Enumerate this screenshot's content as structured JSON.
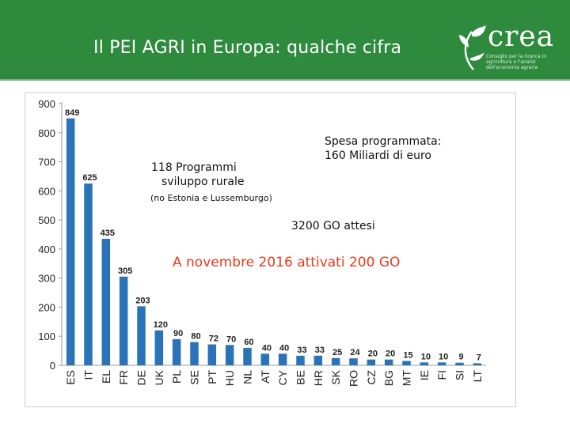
{
  "header": {
    "title": "Il PEI AGRI in Europa: qualche cifra",
    "logo_text": "crea",
    "logo_subtitle": "Consiglio per la ricerca in agricoltura e l'analisi dell'economia agraria"
  },
  "colors": {
    "header_bg": "#2e8b3e",
    "bar": "#2b73b8",
    "highlight": "#e83a1c"
  },
  "annotations": {
    "programs_line1": "118 Programmi",
    "programs_line2": "sviluppo rurale",
    "programs_note": "(no Estonia e Lussemburgo)",
    "spending_line1": "Spesa programmata:",
    "spending_line2": "160 Miliardi di euro",
    "expected_go": "3200 GO attesi",
    "activated_go": "A novembre 2016 attivati 200 GO"
  },
  "chart_data": {
    "type": "bar",
    "title": "",
    "xlabel": "",
    "ylabel": "",
    "ylim": [
      0,
      900
    ],
    "yticks": [
      0,
      100,
      200,
      300,
      400,
      500,
      600,
      700,
      800,
      900
    ],
    "grid": false,
    "categories": [
      "ES",
      "IT",
      "EL",
      "FR",
      "DE",
      "UK",
      "PL",
      "SE",
      "PT",
      "HU",
      "NL",
      "AT",
      "CY",
      "BE",
      "HR",
      "SK",
      "RO",
      "CZ",
      "BG",
      "MT",
      "IE",
      "FI",
      "SI",
      "LT"
    ],
    "values": [
      849,
      625,
      435,
      305,
      203,
      120,
      90,
      80,
      72,
      70,
      60,
      40,
      40,
      33,
      33,
      25,
      24,
      20,
      20,
      15,
      10,
      10,
      9,
      7
    ]
  }
}
